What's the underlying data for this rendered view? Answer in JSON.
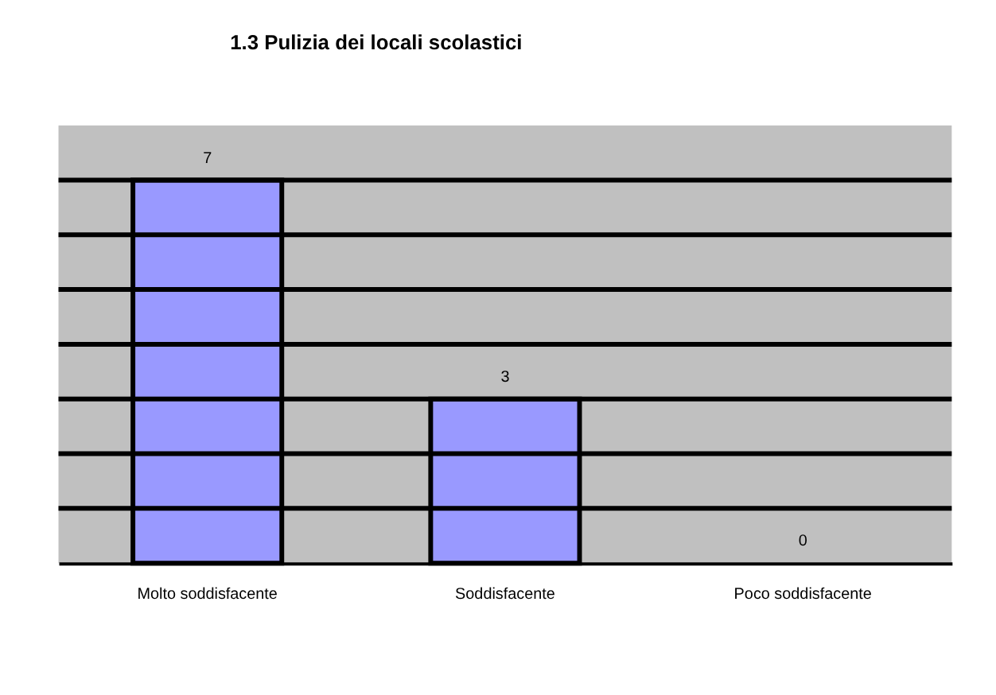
{
  "chart_data": {
    "type": "bar",
    "title": "1.3 Pulizia dei locali  scolastici",
    "categories": [
      "Molto soddisfacente",
      "Soddisfacente",
      "Poco soddisfacente"
    ],
    "values": [
      7,
      3,
      0
    ],
    "color": "#9999ff",
    "ylim": [
      0,
      8
    ],
    "yticks": [
      {
        "value": 1,
        "label": null
      },
      {
        "value": 2,
        "label": null
      },
      {
        "value": 3,
        "label": null
      },
      {
        "value": 4,
        "label": null
      },
      {
        "value": 5,
        "label": null
      },
      {
        "value": 6,
        "label": null
      },
      {
        "value": 7,
        "label": null
      }
    ],
    "grid": "y",
    "data_labels": true,
    "tick_labels": "x"
  }
}
